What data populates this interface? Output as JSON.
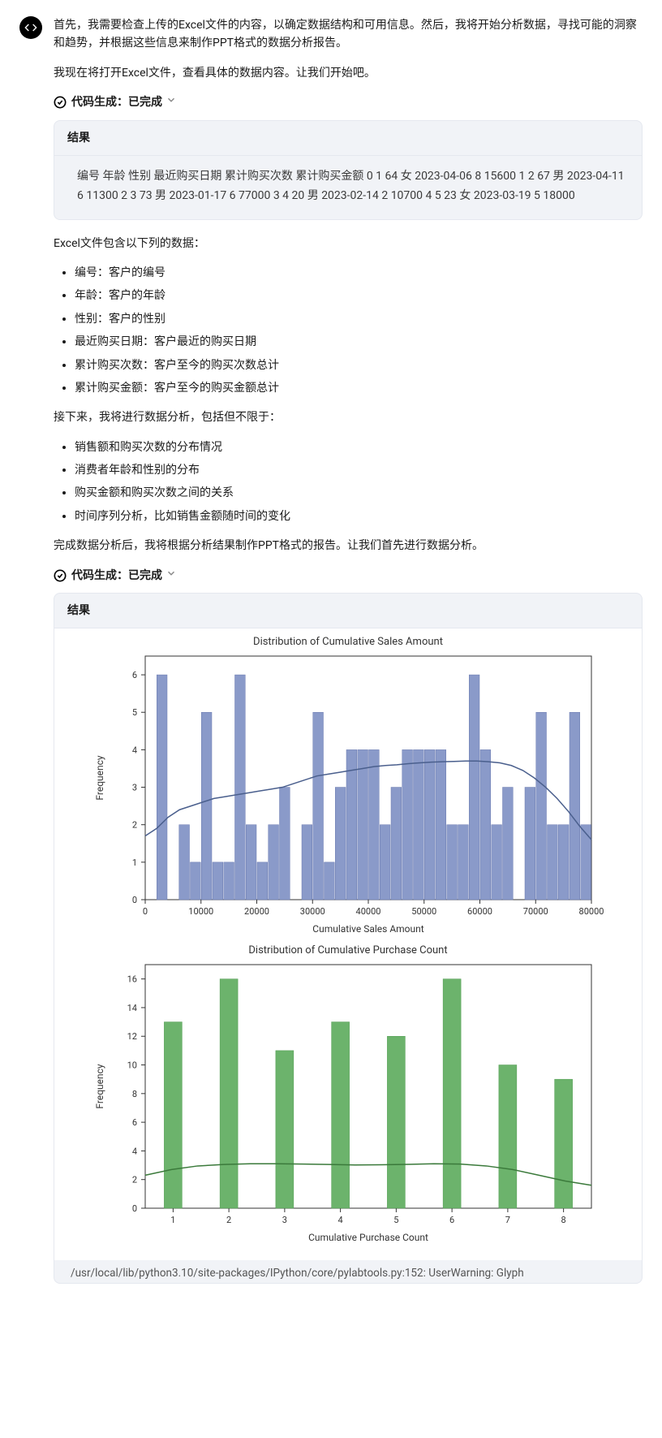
{
  "intro": {
    "p1": "首先，我需要检查上传的Excel文件的内容，以确定数据结构和可用信息。然后，我将开始分析数据，寻找可能的洞察和趋势，并根据这些信息来制作PPT格式的数据分析报告。",
    "p2": "我现在将打开Excel文件，查看具体的数据内容。让我们开始吧。"
  },
  "code_gen": {
    "label": "代码生成：",
    "status": "已完成"
  },
  "result1": {
    "header": "结果",
    "body": "编号 年龄 性别 最近购买日期 累计购买次数 累计购买金额 0 1 64 女 2023-04-06 8 15600 1 2 67 男 2023-04-11 6 11300 2 3 73 男 2023-01-17 6 77000 3 4 20 男 2023-02-14 2 10700 4 5 23 女 2023-03-19 5 18000"
  },
  "fields_intro": "Excel文件包含以下列的数据：",
  "fields": [
    "编号：客户的编号",
    "年龄：客户的年龄",
    "性别：客户的性别",
    "最近购买日期：客户最近的购买日期",
    "累计购买次数：客户至今的购买次数总计",
    "累计购买金额：客户至今的购买金额总计"
  ],
  "analysis_intro": "接下来，我将进行数据分析，包括但不限于：",
  "analysis_items": [
    "销售额和购买次数的分布情况",
    "消费者年龄和性别的分布",
    "购买金额和购买次数之间的关系",
    "时间序列分析，比如销售金额随时间的变化"
  ],
  "after_analysis": "完成数据分析后，我将根据分析结果制作PPT格式的报告。让我们首先进行数据分析。",
  "result2": {
    "header": "结果"
  },
  "chart1": {
    "type": "histogram",
    "title": "Distribution of Cumulative Sales Amount",
    "xlabel": "Cumulative Sales Amount",
    "ylabel": "Frequency",
    "xlim": [
      0,
      80000
    ],
    "ylim": [
      0,
      6.5
    ],
    "xtick_step": 10000,
    "ytick_step": 1,
    "bar_color": "#8a9ac9",
    "line_color": "#4a5f8d",
    "bg_color": "#ffffff",
    "grid_color": "none",
    "values": [
      0,
      6,
      0,
      2,
      1,
      5,
      1,
      1,
      6,
      2,
      1,
      2,
      3,
      0,
      2,
      5,
      1,
      3,
      4,
      4,
      4,
      2,
      3,
      4,
      4,
      4,
      4,
      2,
      2,
      6,
      4,
      2,
      3,
      0,
      3,
      5,
      2,
      2,
      5,
      2
    ],
    "kde": [
      1.7,
      1.9,
      2.2,
      2.4,
      2.5,
      2.6,
      2.7,
      2.75,
      2.8,
      2.85,
      2.9,
      2.95,
      3.0,
      3.1,
      3.2,
      3.3,
      3.35,
      3.4,
      3.45,
      3.5,
      3.55,
      3.58,
      3.6,
      3.63,
      3.65,
      3.67,
      3.68,
      3.69,
      3.7,
      3.7,
      3.68,
      3.65,
      3.58,
      3.45,
      3.25,
      3.0,
      2.7,
      2.35,
      1.95,
      1.6
    ]
  },
  "chart2": {
    "type": "histogram",
    "title": "Distribution of Cumulative Purchase Count",
    "xlabel": "Cumulative Purchase Count",
    "ylabel": "Frequency",
    "categories": [
      1,
      2,
      3,
      4,
      5,
      6,
      7,
      8
    ],
    "ylim": [
      0,
      17
    ],
    "ytick_step": 2,
    "bar_color": "#6cb36c",
    "line_color": "#3b7a3b",
    "bg_color": "#ffffff",
    "values": [
      13,
      16,
      11,
      13,
      12,
      16,
      10,
      9
    ],
    "kde": [
      2.3,
      2.7,
      2.95,
      3.05,
      3.1,
      3.1,
      3.08,
      3.05,
      3.02,
      3.03,
      3.06,
      3.1,
      3.08,
      2.95,
      2.7,
      2.3,
      1.9,
      1.6
    ]
  },
  "footer": "/usr/local/lib/python3.10/site-packages/IPython/core/pylabtools.py:152: UserWarning: Glyph"
}
